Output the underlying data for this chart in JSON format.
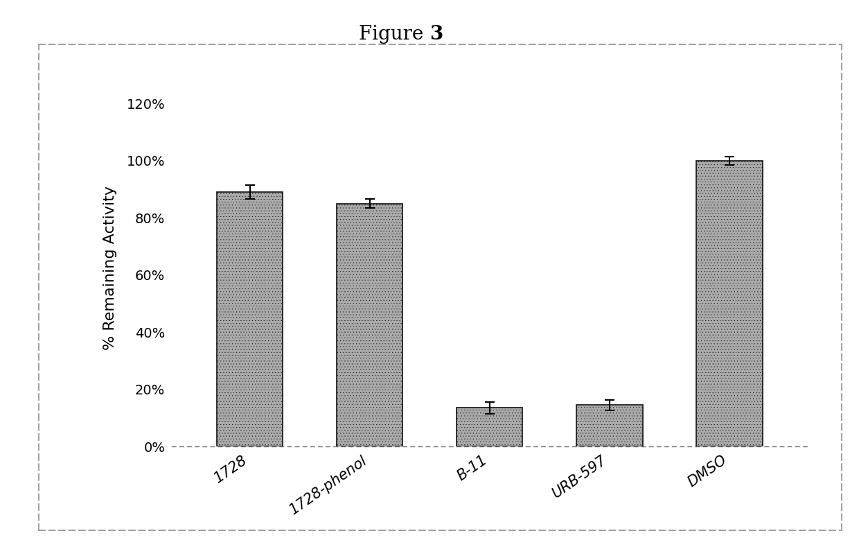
{
  "categories": [
    "1728",
    "1728-phenol",
    "B-11",
    "URB-597",
    "DMSO"
  ],
  "values": [
    0.89,
    0.85,
    0.135,
    0.145,
    1.0
  ],
  "errors": [
    0.025,
    0.015,
    0.02,
    0.018,
    0.015
  ],
  "ylabel": "% Remaining Activity",
  "ylim": [
    0,
    1.25
  ],
  "yticks": [
    0.0,
    0.2,
    0.4,
    0.6,
    0.8,
    1.0,
    1.2
  ],
  "ytick_labels": [
    "0%",
    "20%",
    "40%",
    "60%",
    "80%",
    "100%",
    "120%"
  ],
  "title_normal": "Figure ",
  "title_bold": "3",
  "bar_color": "#aaaaaa",
  "bar_hatch": "....",
  "bar_edgecolor": "#111111",
  "bar_width": 0.55,
  "background_color": "#ffffff",
  "border_dash_color": "#999999",
  "title_fontsize": 20,
  "label_fontsize": 16,
  "tick_fontsize": 14,
  "xticklabel_fontsize": 15
}
